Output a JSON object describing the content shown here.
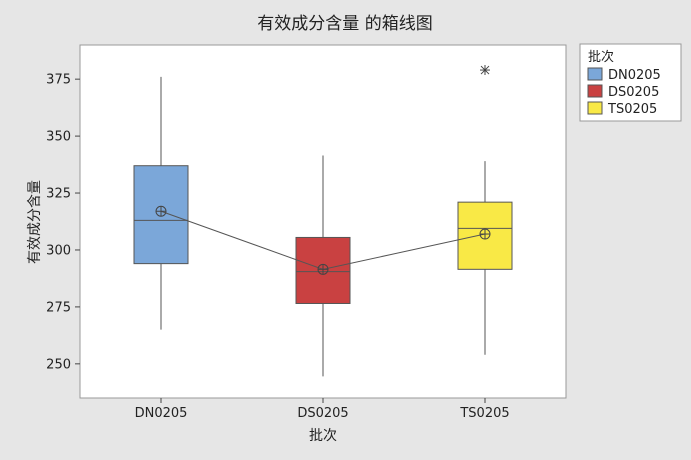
{
  "chart_data": {
    "type": "boxplot",
    "title": "有效成分含量 的箱线图",
    "xlabel": "批次",
    "ylabel": "有效成分含量",
    "ylim": [
      235,
      390
    ],
    "yticks": [
      250,
      275,
      300,
      325,
      350,
      375
    ],
    "categories": [
      "DN0205",
      "DS0205",
      "TS0205"
    ],
    "legend": {
      "title": "批次",
      "position": "right"
    },
    "series": [
      {
        "name": "DN0205",
        "color": "#7ba7d9",
        "whisker_low": 265,
        "q1": 294,
        "median": 313,
        "q3": 337,
        "whisker_high": 376,
        "mean": 317,
        "outliers": []
      },
      {
        "name": "DS0205",
        "color": "#c94141",
        "whisker_low": 244.5,
        "q1": 276.5,
        "median": 290.5,
        "q3": 305.5,
        "whisker_high": 341.5,
        "mean": 291.5,
        "outliers": []
      },
      {
        "name": "TS0205",
        "color": "#f9e946",
        "whisker_low": 254,
        "q1": 291.5,
        "median": 309.5,
        "q3": 321,
        "whisker_high": 339,
        "mean": 307,
        "outliers": [
          379
        ]
      }
    ],
    "mean_line": true,
    "grid": false
  }
}
